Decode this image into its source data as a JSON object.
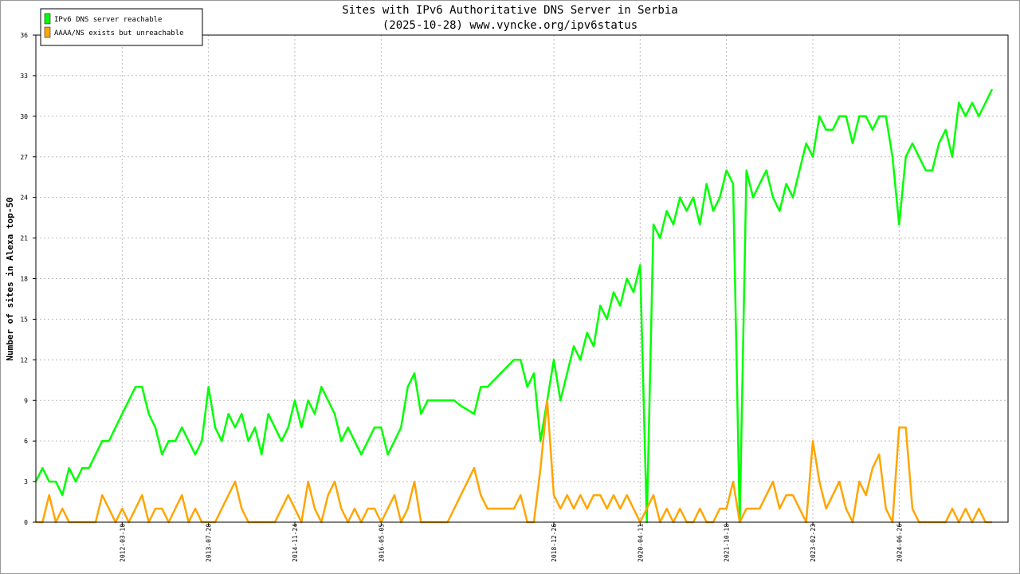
{
  "chart_data": {
    "type": "line",
    "title": "Sites with IPv6 Authoritative DNS Server in Serbia",
    "subtitle": "(2025-10-28) www.vyncke.org/ipv6status",
    "y_label": "Number of sites in Alexa top-50",
    "ylim": [
      0,
      36
    ],
    "yticks": [
      0,
      3,
      6,
      9,
      12,
      15,
      18,
      21,
      24,
      27,
      30,
      33,
      36
    ],
    "grid": true,
    "legend": "top-left",
    "categories": [
      null,
      null,
      null,
      null,
      null,
      null,
      null,
      null,
      null,
      null,
      null,
      null,
      null,
      "2012-03-10",
      null,
      null,
      null,
      null,
      null,
      null,
      null,
      null,
      null,
      null,
      null,
      null,
      "2013-07-20",
      null,
      null,
      null,
      null,
      null,
      null,
      null,
      null,
      null,
      null,
      null,
      null,
      "2014-11-24",
      null,
      null,
      null,
      null,
      null,
      null,
      null,
      null,
      null,
      null,
      null,
      null,
      "2016-05-05",
      null,
      null,
      null,
      null,
      null,
      null,
      null,
      null,
      null,
      null,
      null,
      null,
      null,
      null,
      null,
      null,
      null,
      null,
      null,
      null,
      null,
      null,
      null,
      null,
      null,
      "2018-12-26",
      null,
      null,
      null,
      null,
      null,
      null,
      null,
      null,
      null,
      null,
      null,
      null,
      "2020-04-11",
      null,
      null,
      null,
      null,
      null,
      null,
      null,
      null,
      null,
      null,
      null,
      null,
      "2021-10-18",
      null,
      null,
      null,
      null,
      null,
      null,
      null,
      null,
      null,
      null,
      null,
      null,
      "2023-02-23",
      null,
      null,
      null,
      null,
      null,
      null,
      null,
      null,
      null,
      null,
      null,
      null,
      "2024-06-26",
      null,
      null,
      null,
      null,
      null,
      null,
      null,
      null,
      null,
      null,
      null,
      null,
      null,
      null
    ],
    "series": [
      {
        "name": "IPv6 DNS server reachable",
        "color": "#00ff00",
        "values": [
          3,
          4,
          3,
          3,
          2,
          4,
          3,
          4,
          4,
          5,
          6,
          6,
          7,
          8,
          9,
          10,
          10,
          8,
          7,
          5,
          6,
          6,
          7,
          6,
          5,
          6,
          10,
          7,
          6,
          8,
          7,
          8,
          6,
          7,
          5,
          8,
          7,
          6,
          7,
          9,
          7,
          9,
          8,
          10,
          9,
          8,
          6,
          7,
          6,
          5,
          6,
          7,
          7,
          5,
          6,
          7,
          10,
          11,
          8,
          9,
          9,
          9,
          9,
          9,
          8.6,
          8.3,
          8,
          10,
          10,
          10.5,
          11,
          11.5,
          12,
          12,
          10,
          11,
          6,
          9,
          12,
          9,
          11,
          13,
          12,
          14,
          13,
          16,
          15,
          17,
          16,
          18,
          17,
          19,
          0,
          22,
          21,
          23,
          22,
          24,
          23,
          24,
          22,
          25,
          23,
          24,
          26,
          25,
          0,
          26,
          24,
          25,
          26,
          24,
          23,
          25,
          24,
          26,
          28,
          27,
          30,
          29,
          29,
          30,
          30,
          28,
          30,
          30,
          29,
          30,
          30,
          27,
          22,
          27,
          28,
          27,
          26,
          26,
          28,
          29,
          27,
          31,
          30,
          31,
          30,
          31,
          32
        ]
      },
      {
        "name": "AAAA/NS exists but unreachable",
        "color": "#ffa500",
        "values": [
          0,
          0,
          2,
          0,
          1,
          0,
          0,
          0,
          0,
          0,
          2,
          1,
          0,
          1,
          0,
          1,
          2,
          0,
          1,
          1,
          0,
          1,
          2,
          0,
          1,
          0,
          0,
          0,
          1,
          2,
          3,
          1,
          0,
          0,
          0,
          0,
          0,
          1,
          2,
          1,
          0,
          3,
          1,
          0,
          2,
          3,
          1,
          0,
          1,
          0,
          1,
          1,
          0,
          1,
          2,
          0,
          1,
          3,
          0,
          0,
          0,
          0,
          0,
          1,
          2,
          3,
          4,
          2,
          1,
          1,
          1,
          1,
          1,
          2,
          0,
          0,
          4,
          9,
          2,
          1,
          2,
          1,
          2,
          1,
          2,
          2,
          1,
          2,
          1,
          2,
          1,
          0,
          1,
          2,
          0,
          1,
          0,
          1,
          0,
          0,
          1,
          0,
          0,
          1,
          1,
          3,
          0,
          1,
          1,
          1,
          2,
          3,
          1,
          2,
          2,
          1,
          0,
          6,
          3,
          1,
          2,
          3,
          1,
          0,
          3,
          2,
          4,
          5,
          1,
          0,
          7,
          7,
          1,
          0,
          0,
          0,
          0,
          0,
          1,
          0,
          1,
          0,
          1,
          0,
          0
        ]
      }
    ]
  }
}
